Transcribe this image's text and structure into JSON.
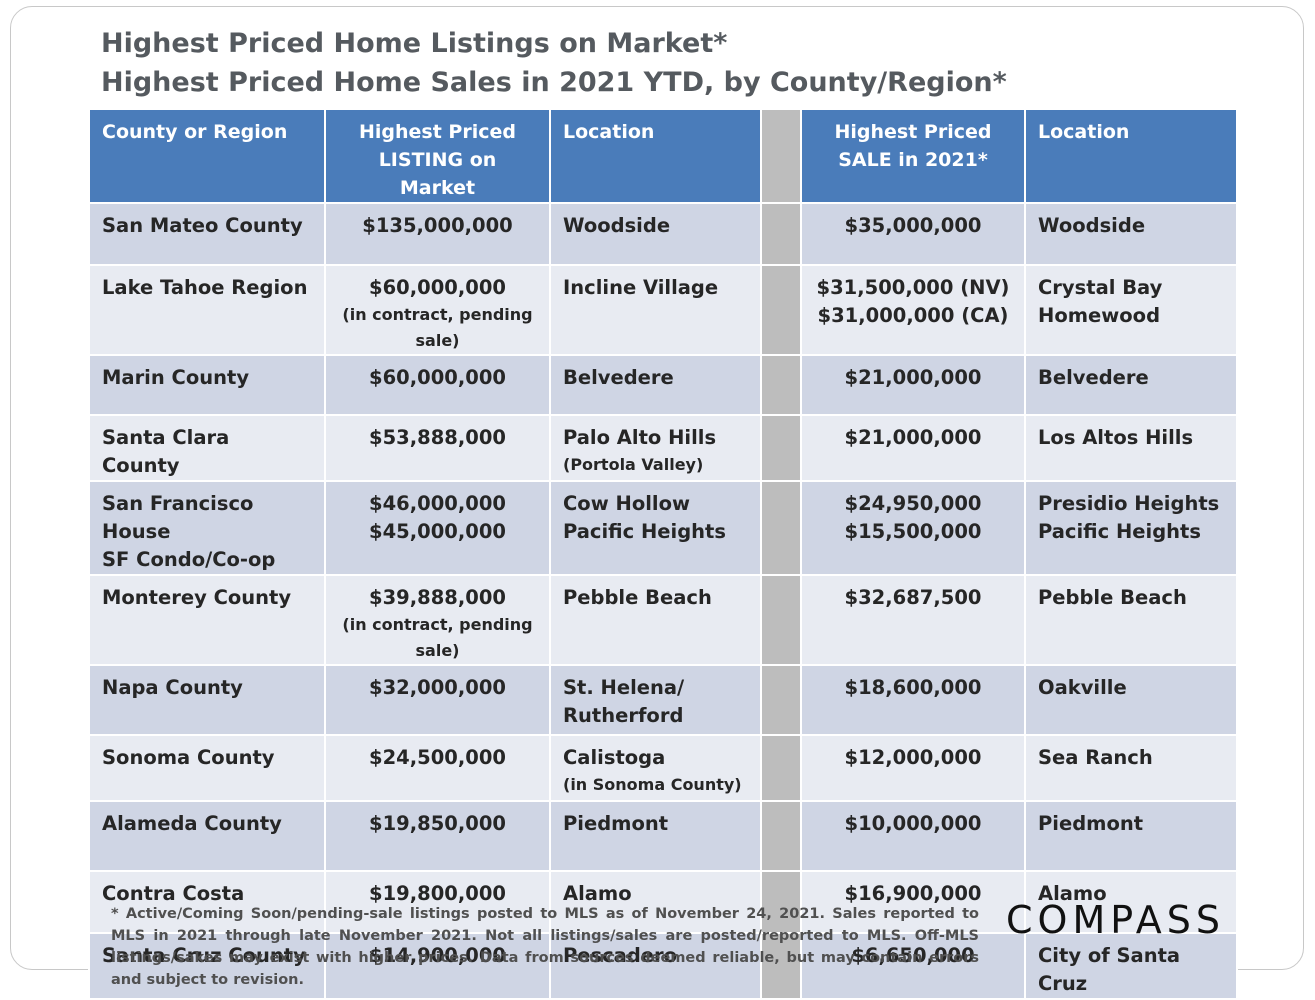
{
  "titles": {
    "line1": "Highest Priced Home Listings on Market*",
    "line2": "Highest Priced Home Sales in 2021 YTD, by County/Region*"
  },
  "headers": {
    "region": "County or Region",
    "listing_line1": "Highest Priced",
    "listing_line2": "LISTING on Market",
    "location1": "Location",
    "sale_line1": "Highest Priced",
    "sale_line2": "SALE in 2021*",
    "location2": "Location"
  },
  "rows": [
    {
      "region": [
        "San Mateo County"
      ],
      "listing": [
        "$135,000,000"
      ],
      "listing_note": "",
      "location1": [
        "Woodside"
      ],
      "location1_note": "",
      "sale": [
        "$35,000,000"
      ],
      "location2": [
        "Woodside"
      ]
    },
    {
      "region": [
        "Lake Tahoe Region"
      ],
      "listing": [
        "$60,000,000"
      ],
      "listing_note": "(in contract, pending sale)",
      "location1": [
        "Incline Village"
      ],
      "location1_note": "",
      "sale": [
        "$31,500,000 (NV)",
        "$31,000,000 (CA)"
      ],
      "location2": [
        "Crystal Bay",
        "Homewood"
      ]
    },
    {
      "region": [
        "Marin County"
      ],
      "listing": [
        "$60,000,000"
      ],
      "listing_note": "",
      "location1": [
        "Belvedere"
      ],
      "location1_note": "",
      "sale": [
        "$21,000,000"
      ],
      "location2": [
        "Belvedere"
      ]
    },
    {
      "region": [
        "Santa Clara County"
      ],
      "listing": [
        "$53,888,000"
      ],
      "listing_note": "",
      "location1": [
        "Palo Alto Hills"
      ],
      "location1_note": "(Portola Valley)",
      "sale": [
        "$21,000,000"
      ],
      "location2": [
        "Los Altos Hills"
      ]
    },
    {
      "region": [
        "San Francisco House",
        "SF Condo/Co-op"
      ],
      "listing": [
        "$46,000,000",
        "$45,000,000"
      ],
      "listing_note": "",
      "location1": [
        "Cow Hollow",
        "Pacific Heights"
      ],
      "location1_note": "",
      "sale": [
        "$24,950,000",
        "$15,500,000"
      ],
      "location2": [
        "Presidio Heights",
        "Pacific Heights"
      ]
    },
    {
      "region": [
        "Monterey County"
      ],
      "listing": [
        "$39,888,000"
      ],
      "listing_note": "(in contract, pending sale)",
      "location1": [
        "Pebble Beach"
      ],
      "location1_note": "",
      "sale": [
        "$32,687,500"
      ],
      "location2": [
        "Pebble Beach"
      ]
    },
    {
      "region": [
        "Napa County"
      ],
      "listing": [
        "$32,000,000"
      ],
      "listing_note": "",
      "location1": [
        "St. Helena/",
        "Rutherford"
      ],
      "location1_note": "",
      "sale": [
        "$18,600,000"
      ],
      "location2": [
        "Oakville"
      ]
    },
    {
      "region": [
        "Sonoma County"
      ],
      "listing": [
        "$24,500,000"
      ],
      "listing_note": "",
      "location1": [
        "Calistoga"
      ],
      "location1_note": "(in Sonoma County)",
      "sale": [
        "$12,000,000"
      ],
      "location2": [
        "Sea Ranch"
      ]
    },
    {
      "region": [
        "Alameda County"
      ],
      "listing": [
        "$19,850,000"
      ],
      "listing_note": "",
      "location1": [
        "Piedmont"
      ],
      "location1_note": "",
      "sale": [
        "$10,000,000"
      ],
      "location2": [
        "Piedmont"
      ]
    },
    {
      "region": [
        "Contra Costa"
      ],
      "listing": [
        "$19,800,000"
      ],
      "listing_note": "",
      "location1": [
        "Alamo"
      ],
      "location1_note": "",
      "sale": [
        "$16,900,000"
      ],
      "location2": [
        "Alamo"
      ]
    },
    {
      "region": [
        "Santa Cruz County"
      ],
      "listing": [
        "$14,900,000"
      ],
      "listing_note": "",
      "location1": [
        "Pescadero"
      ],
      "location1_note": "",
      "sale": [
        "$6,650,000"
      ],
      "location2": [
        "City of Santa Cruz"
      ]
    }
  ],
  "footnote": "* Active/Coming Soon/pending-sale listings posted to MLS as of November 24, 2021. Sales reported to MLS in 2021 through late November 2021. Not all listings/sales are posted/reported to MLS. Off-MLS listings/sakes may exist with higher prices. Data from sources deemed reliable, but may contain errors and subject to revision.",
  "logo": "COMPASS"
}
